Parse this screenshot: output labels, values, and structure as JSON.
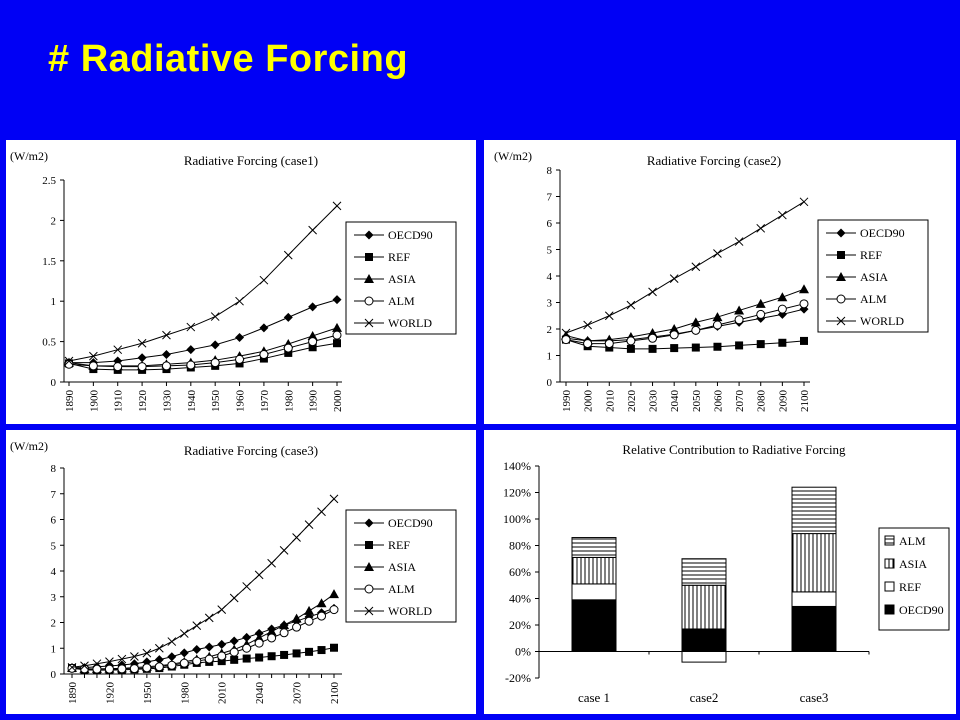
{
  "slide_title": "# Radiative Forcing",
  "colors": {
    "background": "#0000f5",
    "title": "#ffff00",
    "panel": "#ffffff",
    "ink": "#000000"
  },
  "legend_items": [
    "OECD90",
    "REF",
    "ASIA",
    "ALM",
    "WORLD"
  ],
  "legend_markers": [
    "diamond",
    "square",
    "triangle",
    "circle",
    "cross"
  ],
  "chart_data": [
    {
      "type": "line",
      "title": "Radiative Forcing (case1)",
      "ylabel": "(W/m2)",
      "x": [
        "1890",
        "1900",
        "1910",
        "1920",
        "1930",
        "1940",
        "1950",
        "1960",
        "1970",
        "1980",
        "1990",
        "2000"
      ],
      "ylim": [
        0,
        2.5
      ],
      "yticks": [
        "0",
        "0.5",
        "1",
        "1.5",
        "2",
        "2.5"
      ],
      "legend": "right",
      "series": [
        {
          "name": "OECD90",
          "values": [
            0.24,
            0.24,
            0.26,
            0.3,
            0.34,
            0.4,
            0.46,
            0.55,
            0.67,
            0.8,
            0.93,
            1.02
          ]
        },
        {
          "name": "REF",
          "values": [
            0.23,
            0.16,
            0.15,
            0.15,
            0.16,
            0.18,
            0.2,
            0.23,
            0.29,
            0.36,
            0.43,
            0.48
          ]
        },
        {
          "name": "ASIA",
          "values": [
            0.24,
            0.2,
            0.2,
            0.2,
            0.22,
            0.24,
            0.27,
            0.32,
            0.38,
            0.47,
            0.57,
            0.67
          ]
        },
        {
          "name": "ALM",
          "values": [
            0.22,
            0.2,
            0.19,
            0.19,
            0.2,
            0.21,
            0.24,
            0.28,
            0.34,
            0.42,
            0.5,
            0.58
          ]
        },
        {
          "name": "WORLD",
          "values": [
            0.26,
            0.32,
            0.4,
            0.48,
            0.58,
            0.68,
            0.81,
            1.0,
            1.26,
            1.57,
            1.88,
            2.18
          ]
        }
      ]
    },
    {
      "type": "line",
      "title": "Radiative Forcing (case2)",
      "ylabel": "(W/m2)",
      "x": [
        "1990",
        "2000",
        "2010",
        "2020",
        "2030",
        "2040",
        "2050",
        "2060",
        "2070",
        "2080",
        "2090",
        "2100"
      ],
      "ylim": [
        0,
        8
      ],
      "yticks": [
        "0",
        "1",
        "2",
        "3",
        "4",
        "5",
        "6",
        "7",
        "8"
      ],
      "legend": "right",
      "series": [
        {
          "name": "OECD90",
          "values": [
            1.65,
            1.55,
            1.55,
            1.6,
            1.7,
            1.8,
            1.95,
            2.1,
            2.25,
            2.4,
            2.55,
            2.75
          ]
        },
        {
          "name": "REF",
          "values": [
            1.6,
            1.35,
            1.3,
            1.25,
            1.25,
            1.28,
            1.3,
            1.33,
            1.38,
            1.43,
            1.48,
            1.55
          ]
        },
        {
          "name": "ASIA",
          "values": [
            1.75,
            1.55,
            1.6,
            1.7,
            1.85,
            2.0,
            2.25,
            2.45,
            2.7,
            2.95,
            3.2,
            3.5
          ]
        },
        {
          "name": "ALM",
          "values": [
            1.6,
            1.45,
            1.45,
            1.55,
            1.65,
            1.78,
            1.95,
            2.15,
            2.35,
            2.55,
            2.75,
            2.95
          ]
        },
        {
          "name": "WORLD",
          "values": [
            1.85,
            2.15,
            2.5,
            2.9,
            3.4,
            3.9,
            4.35,
            4.85,
            5.3,
            5.8,
            6.3,
            6.8
          ]
        }
      ]
    },
    {
      "type": "line",
      "title": "Radiative Forcing (case3)",
      "ylabel": "(W/m2)",
      "x": [
        "1890",
        "1900",
        "1910",
        "1920",
        "1930",
        "1940",
        "1950",
        "1960",
        "1970",
        "1980",
        "1990",
        "2000",
        "2010",
        "2020",
        "2030",
        "2040",
        "2050",
        "2060",
        "2070",
        "2080",
        "2090",
        "2100"
      ],
      "xticks": [
        "1890",
        "1920",
        "1950",
        "1980",
        "2010",
        "2040",
        "2070",
        "2100"
      ],
      "ylim": [
        0,
        8
      ],
      "yticks": [
        "0",
        "1",
        "2",
        "3",
        "4",
        "5",
        "6",
        "7",
        "8"
      ],
      "legend": "right",
      "series": [
        {
          "name": "OECD90",
          "values": [
            0.25,
            0.25,
            0.28,
            0.31,
            0.35,
            0.4,
            0.47,
            0.56,
            0.67,
            0.82,
            0.95,
            1.05,
            1.15,
            1.28,
            1.42,
            1.58,
            1.75,
            1.9,
            2.05,
            2.22,
            2.38,
            2.55
          ]
        },
        {
          "name": "REF",
          "values": [
            0.23,
            0.16,
            0.15,
            0.15,
            0.16,
            0.18,
            0.2,
            0.23,
            0.29,
            0.36,
            0.43,
            0.47,
            0.5,
            0.55,
            0.6,
            0.64,
            0.69,
            0.74,
            0.8,
            0.86,
            0.93,
            1.02
          ]
        },
        {
          "name": "ASIA",
          "values": [
            0.24,
            0.2,
            0.2,
            0.21,
            0.22,
            0.25,
            0.28,
            0.32,
            0.38,
            0.47,
            0.57,
            0.67,
            0.8,
            0.95,
            1.15,
            1.4,
            1.65,
            1.9,
            2.15,
            2.45,
            2.75,
            3.1
          ]
        },
        {
          "name": "ALM",
          "values": [
            0.22,
            0.2,
            0.19,
            0.19,
            0.2,
            0.21,
            0.24,
            0.28,
            0.34,
            0.42,
            0.5,
            0.58,
            0.7,
            0.85,
            1.0,
            1.2,
            1.4,
            1.6,
            1.82,
            2.05,
            2.25,
            2.5
          ]
        },
        {
          "name": "WORLD",
          "values": [
            0.26,
            0.32,
            0.4,
            0.48,
            0.58,
            0.68,
            0.81,
            1.0,
            1.26,
            1.57,
            1.88,
            2.18,
            2.5,
            2.95,
            3.4,
            3.85,
            4.3,
            4.8,
            5.3,
            5.8,
            6.3,
            6.8
          ]
        }
      ]
    },
    {
      "type": "bar",
      "stacked": true,
      "title": "Relative Contribution to Radiative Forcing",
      "categories": [
        "case 1",
        "case2",
        "case3"
      ],
      "ylim": [
        -20,
        140
      ],
      "yticks": [
        "-20%",
        "0%",
        "20%",
        "40%",
        "60%",
        "80%",
        "100%",
        "120%",
        "140%"
      ],
      "legend": "right",
      "series": [
        {
          "name": "OECD90",
          "fill": "solid",
          "values": [
            39,
            17,
            34
          ]
        },
        {
          "name": "REF",
          "fill": "empty",
          "values": [
            12,
            -8,
            11
          ]
        },
        {
          "name": "ASIA",
          "fill": "vertical-stripes",
          "values": [
            20,
            33,
            44
          ]
        },
        {
          "name": "ALM",
          "fill": "horizontal-stripes",
          "values": [
            15,
            20,
            35
          ]
        }
      ],
      "legend_order": [
        "ALM",
        "ASIA",
        "REF",
        "OECD90"
      ]
    }
  ]
}
